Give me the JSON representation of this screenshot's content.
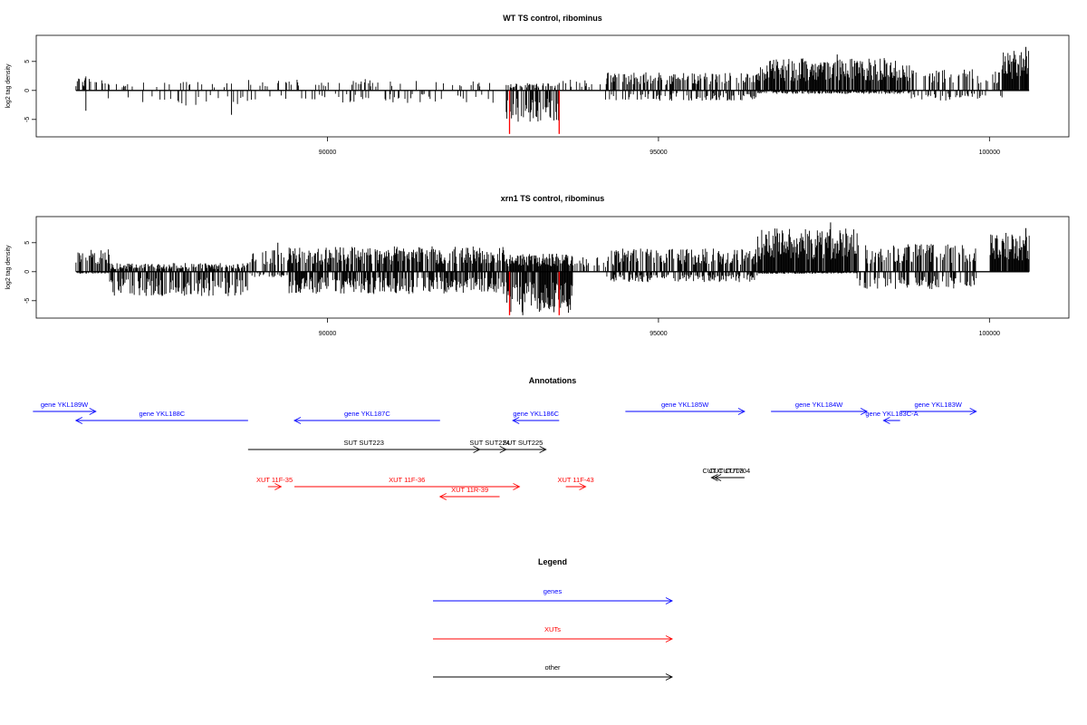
{
  "chart_data": [
    {
      "type": "bar",
      "title": "WT TS control, ribominus",
      "ylabel": "log2 tag density",
      "xlim": [
        85600,
        101200
      ],
      "ylim": [
        -8,
        9.5
      ],
      "x_ticks": [
        90000,
        95000,
        100000
      ],
      "x_tick_labels": [
        "90000",
        "95000",
        "100000"
      ],
      "y_ticks": [
        -5,
        0,
        5
      ],
      "y_tick_labels": [
        "-5",
        "0",
        "5"
      ],
      "data_range": [
        86200,
        100600
      ],
      "series": [
        {
          "color": "#000000",
          "segments": [
            {
              "start": 86200,
              "end": 86600,
              "pos": 2.0,
              "neg": 0,
              "density": 0.35
            },
            {
              "start": 86600,
              "end": 88800,
              "pos": 1.2,
              "neg": 2.2,
              "density": 0.12
            },
            {
              "start": 88800,
              "end": 90200,
              "pos": 1.6,
              "neg": 1.6,
              "density": 0.15
            },
            {
              "start": 90200,
              "end": 92500,
              "pos": 1.6,
              "neg": 1.8,
              "density": 0.14
            },
            {
              "start": 92700,
              "end": 93500,
              "pos": 1.0,
              "neg": 4.5,
              "density": 0.55
            },
            {
              "start": 93500,
              "end": 94200,
              "pos": 1.5,
              "neg": 0,
              "density": 0.15
            },
            {
              "start": 94200,
              "end": 96500,
              "pos": 2.5,
              "neg": 1.5,
              "density": 0.45
            },
            {
              "start": 96500,
              "end": 98800,
              "pos": 4.5,
              "neg": 0.5,
              "density": 0.85
            },
            {
              "start": 98800,
              "end": 100200,
              "pos": 3.0,
              "neg": 1.5,
              "density": 0.35
            },
            {
              "start": 100200,
              "end": 100600,
              "pos": 5.5,
              "neg": 0,
              "density": 0.95
            }
          ],
          "peaks": [
            {
              "x": 86350,
              "y": -3.5
            },
            {
              "x": 88550,
              "y": -4.2
            },
            {
              "x": 97700,
              "y": 6.2
            },
            {
              "x": 100550,
              "y": 7.5
            }
          ]
        },
        {
          "color": "#ff0000",
          "bars": [
            {
              "x": 92750,
              "y": -7.5
            },
            {
              "x": 93500,
              "y": -7.5
            }
          ]
        }
      ]
    },
    {
      "type": "bar",
      "title": "xrn1 TS control, ribominus",
      "ylabel": "log2 tag density",
      "xlim": [
        85600,
        101200
      ],
      "ylim": [
        -8,
        9.5
      ],
      "x_ticks": [
        90000,
        95000,
        100000
      ],
      "x_tick_labels": [
        "90000",
        "95000",
        "100000"
      ],
      "y_ticks": [
        -5,
        0,
        5
      ],
      "y_tick_labels": [
        "-5",
        "0",
        "5"
      ],
      "data_range": [
        86200,
        100600
      ],
      "series": [
        {
          "color": "#000000",
          "segments": [
            {
              "start": 86200,
              "end": 86700,
              "pos": 3.2,
              "neg": 0.3,
              "density": 0.6
            },
            {
              "start": 86700,
              "end": 88800,
              "pos": 1.2,
              "neg": 3.5,
              "density": 0.65
            },
            {
              "start": 88800,
              "end": 89400,
              "pos": 3.0,
              "neg": 0.8,
              "density": 0.4
            },
            {
              "start": 89400,
              "end": 92700,
              "pos": 3.5,
              "neg": 3.2,
              "density": 0.75
            },
            {
              "start": 92700,
              "end": 93700,
              "pos": 2.5,
              "neg": 6.0,
              "density": 0.95
            },
            {
              "start": 93700,
              "end": 94200,
              "pos": 2.0,
              "neg": 0,
              "density": 0.3
            },
            {
              "start": 94200,
              "end": 96500,
              "pos": 3.2,
              "neg": 1.5,
              "density": 0.6
            },
            {
              "start": 96500,
              "end": 98000,
              "pos": 6.0,
              "neg": 0.3,
              "density": 0.95
            },
            {
              "start": 98000,
              "end": 99800,
              "pos": 4.0,
              "neg": 2.5,
              "density": 0.5
            },
            {
              "start": 100000,
              "end": 100600,
              "pos": 5.5,
              "neg": 0,
              "density": 0.95
            }
          ],
          "peaks": [
            {
              "x": 89250,
              "y": 5.0
            },
            {
              "x": 97600,
              "y": 8.5
            },
            {
              "x": 92950,
              "y": -7.5
            },
            {
              "x": 100550,
              "y": 7.5
            }
          ]
        },
        {
          "color": "#ff0000",
          "bars": [
            {
              "x": 92750,
              "y": -7.5
            },
            {
              "x": 93500,
              "y": -7.5
            }
          ]
        }
      ]
    },
    {
      "type": "diagram",
      "title": "Annotations",
      "xlim": [
        85600,
        101200
      ],
      "features": [
        {
          "label": "gene YKL189W",
          "start": 85550,
          "end": 86500,
          "strand": "+",
          "row": 0,
          "color": "#0000ff"
        },
        {
          "label": "gene YKL188C",
          "start": 86200,
          "end": 88800,
          "strand": "-",
          "row": 1,
          "color": "#0000ff"
        },
        {
          "label": "gene YKL187C",
          "start": 89500,
          "end": 91700,
          "strand": "-",
          "row": 1,
          "color": "#0000ff"
        },
        {
          "label": "gene YKL186C",
          "start": 92800,
          "end": 93500,
          "strand": "-",
          "row": 1,
          "color": "#0000ff"
        },
        {
          "label": "gene YKL185W",
          "start": 94500,
          "end": 96300,
          "strand": "+",
          "row": 0,
          "color": "#0000ff"
        },
        {
          "label": "gene YKL184W",
          "start": 96700,
          "end": 98150,
          "strand": "+",
          "row": 0,
          "color": "#0000ff"
        },
        {
          "label": "gene YKL183C-A",
          "start": 98400,
          "end": 98650,
          "strand": "-",
          "row": 1,
          "color": "#0000ff"
        },
        {
          "label": "gene YKL183W",
          "start": 98650,
          "end": 99800,
          "strand": "+",
          "row": 0,
          "color": "#0000ff"
        },
        {
          "label": "SUT SUT223",
          "start": 88800,
          "end": 92300,
          "strand": "+",
          "row": 3,
          "color": "#000000"
        },
        {
          "label": "SUT SUT224",
          "start": 92200,
          "end": 92700,
          "strand": "+",
          "row": 3,
          "color": "#000000"
        },
        {
          "label": "SUT SUT225",
          "start": 92600,
          "end": 93300,
          "strand": "+",
          "row": 3,
          "color": "#000000"
        },
        {
          "label": "CUT CUT703",
          "start": 95800,
          "end": 96150,
          "strand": "-",
          "row": 5,
          "color": "#000000"
        },
        {
          "label": "CUT CUT704",
          "start": 95850,
          "end": 96300,
          "strand": "-",
          "row": 5,
          "color": "#000000"
        },
        {
          "label": "XUT 11F-35",
          "start": 89100,
          "end": 89300,
          "strand": "+",
          "row": 6,
          "color": "#ff0000"
        },
        {
          "label": "XUT 11F-36",
          "start": 89500,
          "end": 92900,
          "strand": "+",
          "row": 6,
          "color": "#ff0000"
        },
        {
          "label": "XUT 11R-39",
          "start": 91700,
          "end": 92600,
          "strand": "-",
          "row": 7,
          "color": "#ff0000"
        },
        {
          "label": "XUT 11F-43",
          "start": 93600,
          "end": 93900,
          "strand": "+",
          "row": 6,
          "color": "#ff0000"
        }
      ]
    }
  ],
  "legend": {
    "title": "Legend",
    "items": [
      {
        "label": "genes",
        "color": "#0000ff"
      },
      {
        "label": "XUTs",
        "color": "#ff0000"
      },
      {
        "label": "other",
        "color": "#000000"
      }
    ]
  }
}
